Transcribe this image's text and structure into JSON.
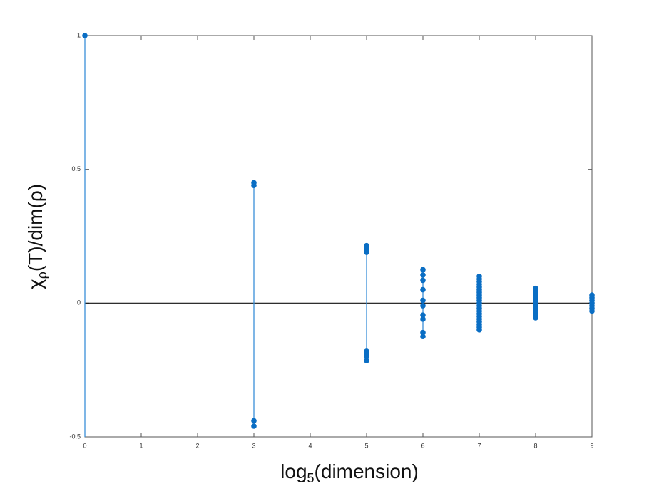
{
  "chart_data": {
    "type": "scatter",
    "xlabel": {
      "base": "log",
      "sub": "5",
      "rest": "(dimension)"
    },
    "ylabel": {
      "base": "χ",
      "sub": "ρ",
      "rest": "(T)/dim(ρ)"
    },
    "x": [
      0,
      3,
      3,
      3,
      3,
      5,
      5,
      5,
      5,
      5,
      5,
      5,
      5,
      6,
      6,
      6,
      6,
      6,
      6,
      6,
      6,
      6,
      6,
      7,
      7,
      7,
      7,
      7,
      7,
      7,
      7,
      7,
      7,
      7,
      7,
      7,
      7,
      7,
      7,
      7,
      7,
      7,
      7,
      7,
      8,
      8,
      8,
      8,
      8,
      8,
      8,
      8,
      8,
      8,
      8,
      8,
      9,
      9,
      9,
      9,
      9,
      9,
      9
    ],
    "y": [
      1,
      0.45,
      0.44,
      -0.44,
      -0.46,
      0.215,
      0.205,
      0.195,
      0.19,
      -0.18,
      -0.19,
      -0.2,
      -0.215,
      0.125,
      0.105,
      0.085,
      0.05,
      0.01,
      -0.01,
      -0.045,
      -0.06,
      -0.11,
      -0.125,
      0.1,
      0.09,
      0.08,
      0.07,
      0.06,
      0.05,
      0.04,
      0.03,
      0.02,
      0.01,
      0,
      -0.01,
      -0.02,
      -0.03,
      -0.04,
      -0.05,
      -0.06,
      -0.07,
      -0.08,
      -0.09,
      -0.1,
      0.055,
      0.045,
      0.035,
      0.025,
      0.015,
      0.005,
      -0.005,
      -0.015,
      -0.025,
      -0.035,
      -0.045,
      -0.055,
      0.03,
      0.02,
      0.01,
      0,
      -0.01,
      -0.02,
      -0.03
    ],
    "color": "#0a6ec4",
    "stem_color": "#3a8fd8",
    "xlim": [
      0,
      9
    ],
    "ylim": [
      -0.5,
      1
    ],
    "xticks": [
      0,
      1,
      2,
      3,
      4,
      5,
      6,
      7,
      8,
      9
    ],
    "yticks": [
      -0.5,
      0,
      0.5,
      1
    ]
  }
}
